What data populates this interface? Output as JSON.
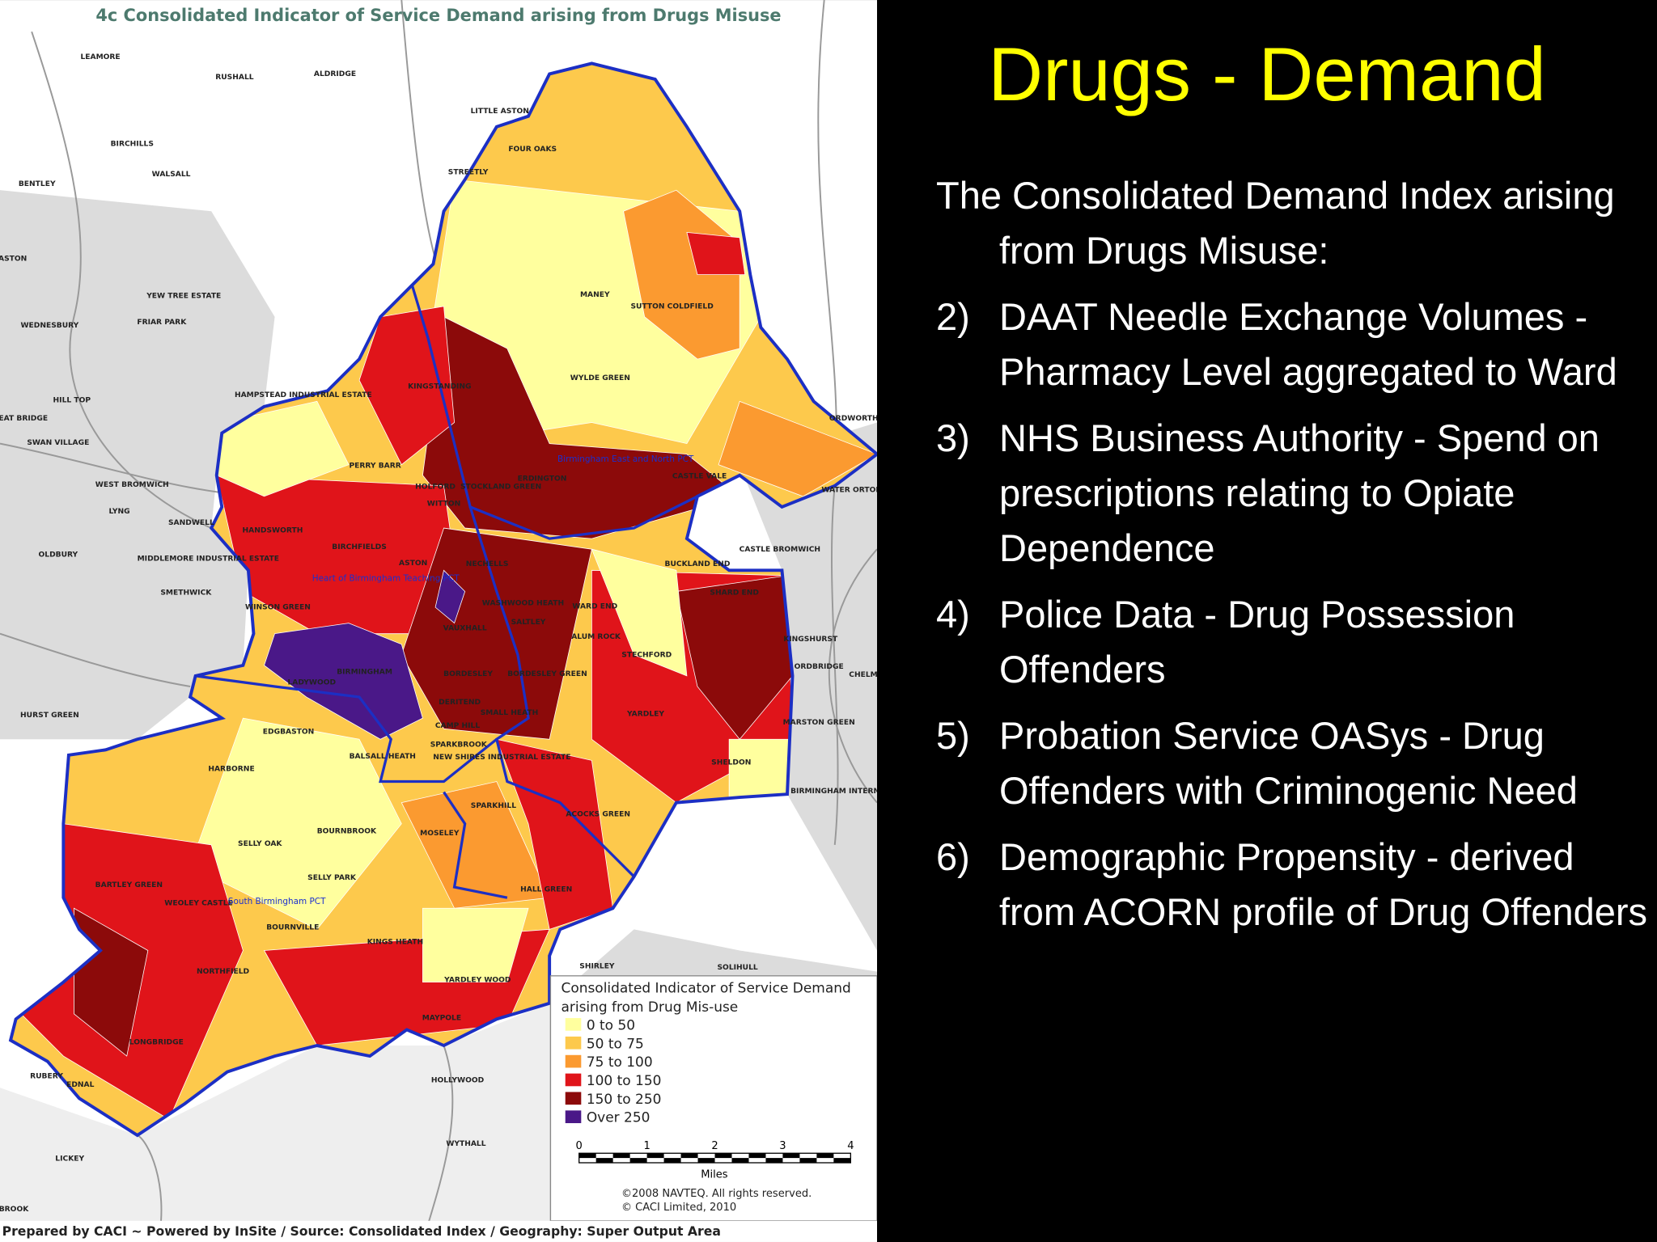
{
  "map": {
    "title": "4c Consolidated Indicator of Service Demand arising from Drugs Misuse",
    "place_labels": [
      "LEAMORE",
      "RUSHALL",
      "ALDRIDGE",
      "LITTLE ASTON",
      "BIRCHILLS",
      "FOUR OAKS",
      "WALSALL",
      "STREETLY",
      "BENTLEY",
      "ASTON",
      "YEW TREE ESTATE",
      "MANEY",
      "SUTTON COLDFIELD",
      "WEDNESBURY",
      "FRIAR PARK",
      "WYLDE GREEN",
      "KINGSTANDING",
      "HAMPSTEAD INDUSTRIAL ESTATE",
      "HILL TOP",
      "EAT BRIDGE",
      "SWAN VILLAGE",
      "PERRY BARR",
      "ERDINGTON",
      "CASTLE VALE",
      "WEST BROMWICH",
      "HOLFORD",
      "STOCKLAND GREEN",
      "WATER ORTON",
      "WITTON",
      "LYNG",
      "SANDWELL",
      "HANDSWORTH",
      "BIRCHFIELDS",
      "OLDBURY",
      "CASTLE BROMWICH",
      "MIDDLEMORE INDUSTRIAL ESTATE",
      "ASTON",
      "NECHELLS",
      "BUCKLAND END",
      "SMETHWICK",
      "WASHWOOD HEATH",
      "SHARD END",
      "WINSON GREEN",
      "WARD END",
      "SALTLEY",
      "VAUXHALL",
      "ALUM ROCK",
      "KINGSHURST",
      "STECHFORD",
      "BIRMINGHAM",
      "BORDESLEY",
      "BORDESLEY GREEN",
      "LADYWOOD",
      "CHELM",
      "DERITEND",
      "SMALL HEATH",
      "HURST GREEN",
      "YARDLEY",
      "MARSTON GREEN",
      "CAMP HILL",
      "EDGBASTON",
      "SPARKBROOK",
      "BALSALL HEATH",
      "NEW SHIRES INDUSTRIAL ESTATE",
      "SHELDON",
      "HARBORNE",
      "BIRMINGHAM INTERNA",
      "SPARKHILL",
      "ACOCKS GREEN",
      "BOURNBROOK",
      "MOSELEY",
      "SELLY OAK",
      "SELLY PARK",
      "BARTLEY GREEN",
      "HALL GREEN",
      "WEOLEY CASTLE",
      "BOURNVILLE",
      "KINGS HEATH",
      "NORTHFIELD",
      "SHIRLEY",
      "SOLIHULL",
      "YARDLEY WOOD",
      "MAYPOLE",
      "LONGBRIDGE",
      "RUBERY",
      "EDNAL",
      "HOLLYWOOD",
      "WYTHALL",
      "LICKEY",
      "BROOK",
      "ORDWORTH",
      "ORDBRIDGE"
    ],
    "pct_labels": [
      "Birmingham East and North PCT",
      "Heart of Birmingham Teaching PCT",
      "South Birmingham PCT"
    ],
    "legend": {
      "title": [
        "Consolidated Indicator of Service Demand",
        "arising from Drug Mis-use"
      ],
      "items": [
        {
          "label": "0 to 50",
          "color": "#ffff9e"
        },
        {
          "label": "50 to 75",
          "color": "#fdc94c"
        },
        {
          "label": "75 to 100",
          "color": "#fb9a30"
        },
        {
          "label": "100 to 150",
          "color": "#e0141a"
        },
        {
          "label": "150 to 250",
          "color": "#8c0a0a"
        },
        {
          "label": "Over 250",
          "color": "#4a1888"
        }
      ]
    },
    "scale": {
      "ticks": [
        "0",
        "1",
        "2",
        "3",
        "4"
      ],
      "unit": "Miles"
    },
    "copyright": [
      "©2008 NAVTEQ. All rights reserved.",
      "© CACI Limited, 2010"
    ],
    "footer": "Prepared by CACI ~ Powered by InSite /  Source:  Consolidated Index  /  Geography:  Super Output Area"
  },
  "slide": {
    "title": "Drugs - Demand",
    "intro": "The Consolidated Demand Index arising from Drugs Misuse:",
    "items": [
      {
        "number": "2)",
        "text": "DAAT Needle Exchange Volumes - Pharmacy Level aggregated to Ward"
      },
      {
        "number": "3)",
        "text": "NHS Business Authority - Spend on prescriptions relating to Opiate Dependence"
      },
      {
        "number": "4)",
        "text": "Police Data - Drug Possession Offenders"
      },
      {
        "number": "5)",
        "text": "Probation Service OASys - Drug Offenders with Criminogenic Need"
      },
      {
        "number": "6)",
        "text": "Demographic Propensity - derived from ACORN profile of Drug Offenders"
      }
    ]
  }
}
